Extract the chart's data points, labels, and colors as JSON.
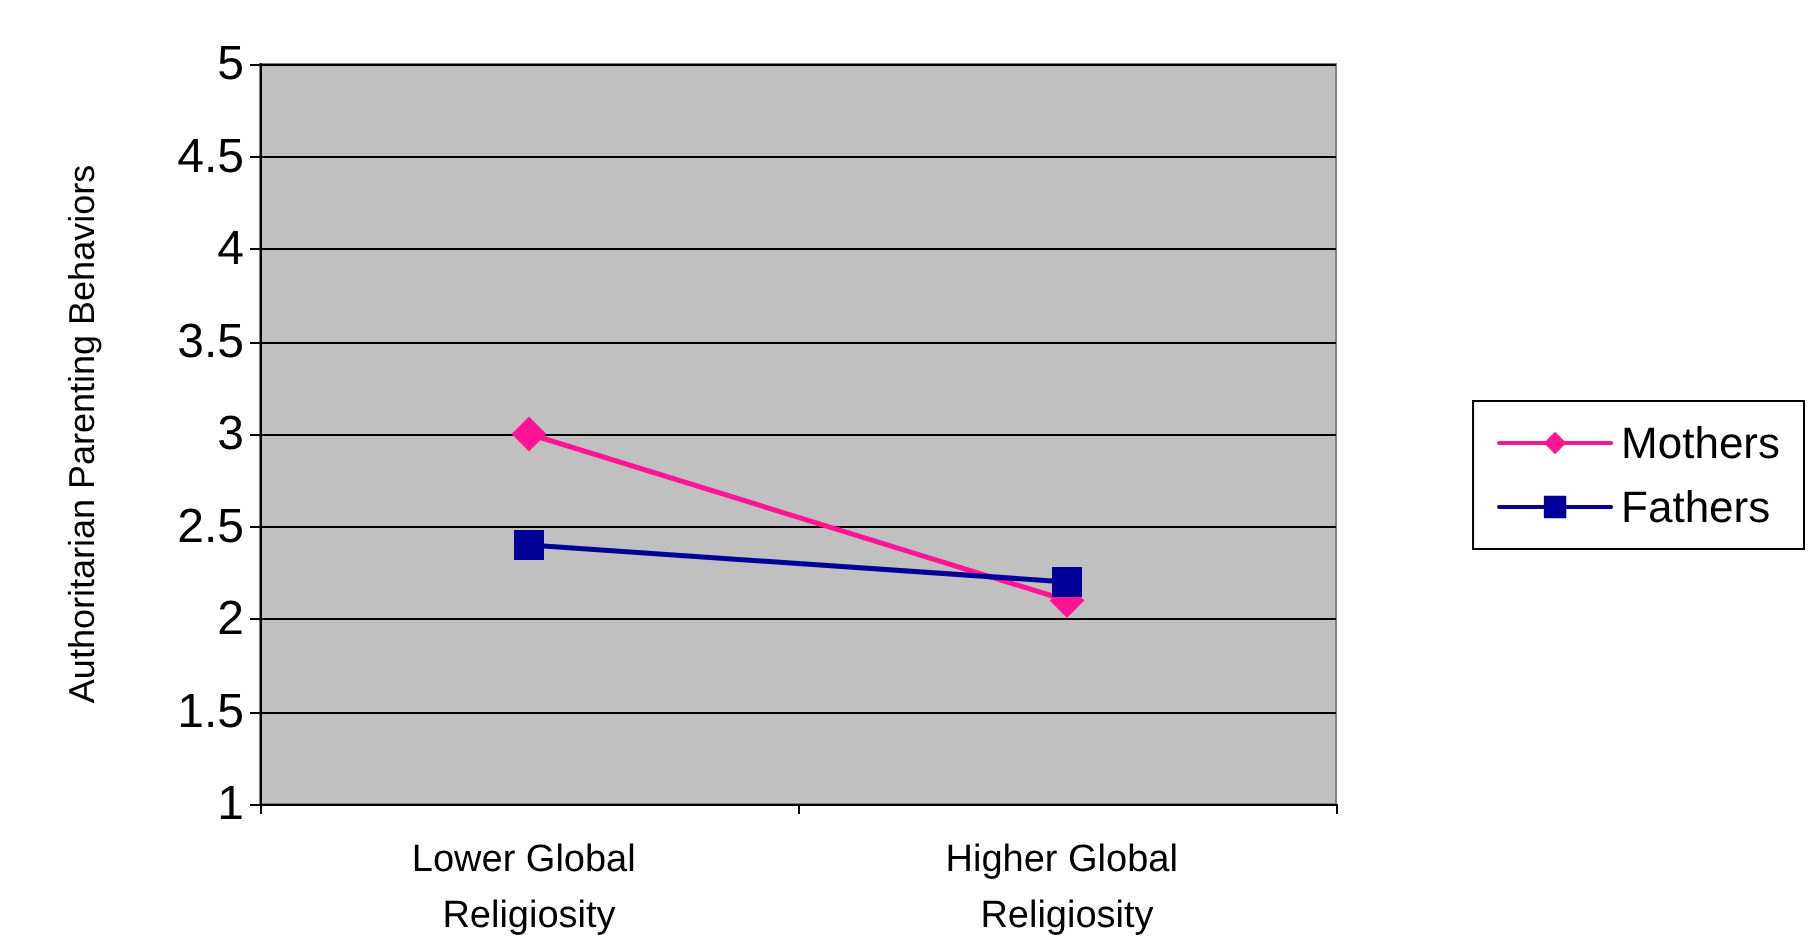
{
  "chart_data": {
    "type": "line",
    "ylabel": "Authoritarian Parenting Behaviors",
    "categories": [
      "Lower Global Religiosity",
      "Higher Global Religiosity"
    ],
    "series": [
      {
        "name": "Mothers",
        "color": "#ff1493",
        "marker": "diamond",
        "values": [
          3.0,
          2.1
        ]
      },
      {
        "name": "Fathers",
        "color": "#000099",
        "marker": "square",
        "values": [
          2.4,
          2.2
        ]
      }
    ],
    "ylim": [
      1,
      5
    ],
    "yticks": [
      1,
      1.5,
      2,
      2.5,
      3,
      3.5,
      4,
      4.5,
      5
    ],
    "grid": "y",
    "legend": "right"
  }
}
